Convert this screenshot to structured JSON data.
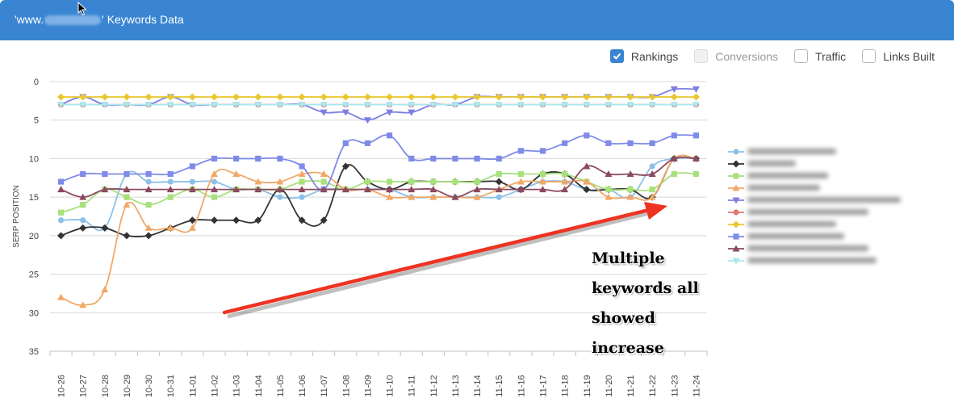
{
  "header": {
    "title_prefix": "'www.",
    "title_suffix": "' Keywords Data"
  },
  "toggles": [
    {
      "label": "Rankings",
      "checked": true,
      "disabled": false
    },
    {
      "label": "Conversions",
      "checked": false,
      "disabled": true
    },
    {
      "label": "Traffic",
      "checked": false,
      "disabled": false
    },
    {
      "label": "Links Built",
      "checked": false,
      "disabled": false
    }
  ],
  "annotation": {
    "lines": [
      "Multiple",
      "keywords all",
      "showed",
      "increase"
    ],
    "arrow_color": "#ee3322"
  },
  "chart_data": {
    "type": "line",
    "ylabel": "SERP POSITION",
    "xlabel": "",
    "ylim": [
      0,
      35
    ],
    "y_reversed": true,
    "yticks": [
      0,
      5,
      10,
      15,
      20,
      25,
      30,
      35
    ],
    "grid": true,
    "legend_position": "right",
    "categories": [
      "10-26",
      "10-27",
      "10-28",
      "10-29",
      "10-30",
      "10-31",
      "11-01",
      "11-02",
      "11-03",
      "11-04",
      "11-05",
      "11-06",
      "11-07",
      "11-08",
      "11-09",
      "11-10",
      "11-11",
      "11-12",
      "11-13",
      "11-14",
      "11-15",
      "11-16",
      "11-17",
      "11-18",
      "11-19",
      "11-20",
      "11-21",
      "11-22",
      "11-23",
      "11-24"
    ],
    "series": [
      {
        "color": "#8cc1e8",
        "marker": "circle",
        "values": [
          18,
          18,
          19,
          12,
          13,
          13,
          13,
          13,
          14,
          14,
          15,
          15,
          14,
          14,
          14,
          14,
          15,
          15,
          15,
          15,
          15,
          14,
          13,
          13,
          14,
          14,
          15,
          11,
          10,
          10
        ]
      },
      {
        "color": "#333333",
        "marker": "diamond",
        "values": [
          20,
          19,
          19,
          20,
          20,
          19,
          18,
          18,
          18,
          18,
          14,
          18,
          18,
          11,
          13,
          14,
          13,
          13,
          13,
          13,
          13,
          14,
          12,
          12,
          14,
          14,
          14,
          15,
          10,
          10
        ]
      },
      {
        "color": "#a8e07c",
        "marker": "square",
        "values": [
          17,
          16,
          14,
          15,
          16,
          15,
          14,
          15,
          14,
          14,
          14,
          13,
          13,
          14,
          13,
          13,
          13,
          13,
          13,
          13,
          12,
          12,
          12,
          12,
          13,
          14,
          14,
          14,
          12,
          12
        ]
      },
      {
        "color": "#f0a868",
        "marker": "triangle",
        "values": [
          28,
          29,
          27,
          16,
          19,
          19,
          19,
          12,
          12,
          13,
          13,
          12,
          12,
          14,
          14,
          15,
          15,
          15,
          15,
          15,
          14,
          13,
          13,
          13,
          13,
          15,
          15,
          15,
          10,
          10
        ]
      },
      {
        "color": "#7b7fe0",
        "marker": "triangle-down",
        "values": [
          3,
          2,
          3,
          3,
          3,
          2,
          3,
          3,
          3,
          3,
          3,
          3,
          4,
          4,
          5,
          4,
          4,
          3,
          3,
          2,
          2,
          2,
          2,
          2,
          2,
          2,
          2,
          2,
          1,
          1
        ]
      },
      {
        "color": "#e07878",
        "marker": "circle",
        "values": [
          3,
          3,
          3,
          3,
          3,
          3,
          3,
          3,
          3,
          3,
          3,
          3,
          3,
          3,
          3,
          3,
          3,
          3,
          3,
          3,
          3,
          3,
          3,
          3,
          3,
          3,
          3,
          3,
          3,
          3
        ]
      },
      {
        "color": "#e8c832",
        "marker": "diamond",
        "values": [
          2,
          2,
          2,
          2,
          2,
          2,
          2,
          2,
          2,
          2,
          2,
          2,
          2,
          2,
          2,
          2,
          2,
          2,
          2,
          2,
          2,
          2,
          2,
          2,
          2,
          2,
          2,
          2,
          2,
          2
        ]
      },
      {
        "color": "#7f8be8",
        "marker": "square",
        "values": [
          13,
          12,
          12,
          12,
          12,
          12,
          11,
          10,
          10,
          10,
          10,
          11,
          14,
          8,
          8,
          7,
          10,
          10,
          10,
          10,
          10,
          9,
          9,
          8,
          7,
          8,
          8,
          8,
          7,
          7
        ]
      },
      {
        "color": "#8b4a5e",
        "marker": "triangle",
        "values": [
          14,
          15,
          14,
          14,
          14,
          14,
          14,
          14,
          14,
          14,
          14,
          14,
          14,
          14,
          14,
          14,
          14,
          14,
          15,
          14,
          14,
          14,
          14,
          14,
          11,
          12,
          12,
          12,
          10,
          10
        ]
      },
      {
        "color": "#a8e8ee",
        "marker": "triangle-down",
        "values": [
          3,
          3,
          3,
          3,
          3,
          3,
          3,
          3,
          3,
          3,
          3,
          3,
          3,
          3,
          3,
          3,
          3,
          3,
          3,
          3,
          3,
          3,
          3,
          3,
          3,
          3,
          3,
          3,
          3,
          3
        ]
      }
    ]
  }
}
